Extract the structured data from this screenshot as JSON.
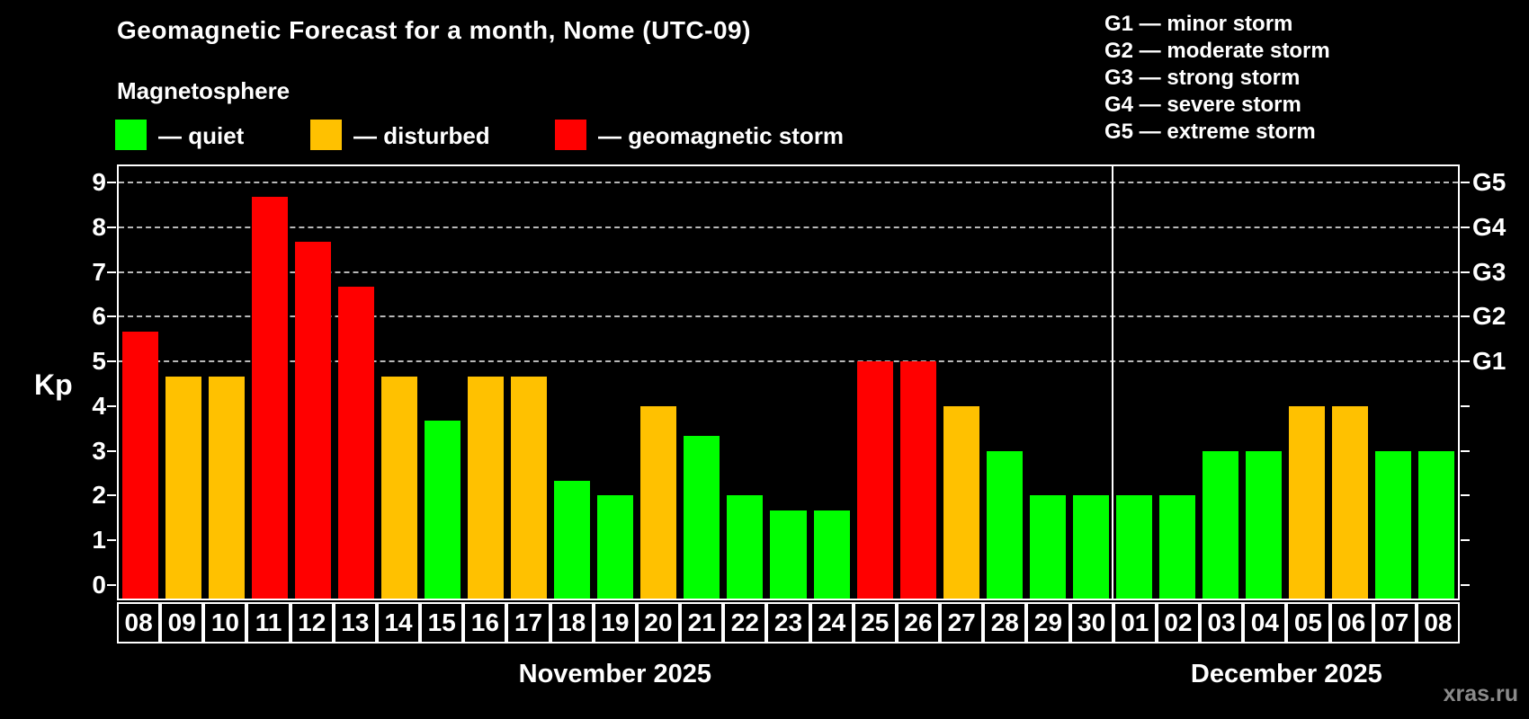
{
  "title": "Geomagnetic Forecast for a month, Nome (UTC-09)",
  "subtitle": "Magnetosphere",
  "colors": {
    "quiet": "#00ff00",
    "disturbed": "#ffc100",
    "storm": "#ff0000",
    "background": "#000000",
    "axis": "#ffffff",
    "gridline": "#b8b8b8",
    "watermark_text": "#8a8a8a"
  },
  "legend": {
    "items": [
      {
        "status": "quiet",
        "label": "— quiet"
      },
      {
        "status": "disturbed",
        "label": "— disturbed"
      },
      {
        "status": "storm",
        "label": "— geomagnetic storm"
      }
    ]
  },
  "g_legend": {
    "items": [
      {
        "text": "G1 — minor storm"
      },
      {
        "text": "G2 — moderate storm"
      },
      {
        "text": "G3 — strong storm"
      },
      {
        "text": "G4 — severe storm"
      },
      {
        "text": "G5 — extreme storm"
      }
    ]
  },
  "watermark": "xras.ru",
  "chart_data": {
    "type": "bar",
    "title": "Geomagnetic Forecast for a month, Nome (UTC-09)",
    "subtitle": "Magnetosphere",
    "ylabel": "Kp",
    "ylim": [
      -0.3,
      9.37
    ],
    "y_ticks": [
      0,
      1,
      2,
      3,
      4,
      5,
      6,
      7,
      8,
      9
    ],
    "gridlines_at": [
      5,
      6,
      7,
      8,
      9
    ],
    "grid": "dashed horizontal at storm levels only",
    "right_axis_labels": [
      {
        "kp": 5,
        "label": "G1"
      },
      {
        "kp": 6,
        "label": "G2"
      },
      {
        "kp": 7,
        "label": "G3"
      },
      {
        "kp": 8,
        "label": "G4"
      },
      {
        "kp": 9,
        "label": "G5"
      }
    ],
    "categories": [
      "08",
      "09",
      "10",
      "11",
      "12",
      "13",
      "14",
      "15",
      "16",
      "17",
      "18",
      "19",
      "20",
      "21",
      "22",
      "23",
      "24",
      "25",
      "26",
      "27",
      "28",
      "29",
      "30",
      "01",
      "02",
      "03",
      "04",
      "05",
      "06",
      "07",
      "08"
    ],
    "values": [
      5.67,
      4.67,
      4.67,
      8.67,
      7.67,
      6.67,
      4.67,
      3.67,
      4.67,
      4.67,
      2.33,
      2,
      4,
      3.33,
      2,
      1.67,
      1.67,
      5,
      5,
      4,
      3,
      2,
      2,
      2,
      2,
      3,
      3,
      4,
      4,
      3,
      3
    ],
    "statuses": [
      "storm",
      "disturbed",
      "disturbed",
      "storm",
      "storm",
      "storm",
      "disturbed",
      "quiet",
      "disturbed",
      "disturbed",
      "quiet",
      "quiet",
      "disturbed",
      "quiet",
      "quiet",
      "quiet",
      "quiet",
      "storm",
      "storm",
      "disturbed",
      "quiet",
      "quiet",
      "quiet",
      "quiet",
      "quiet",
      "quiet",
      "quiet",
      "disturbed",
      "disturbed",
      "quiet",
      "quiet"
    ],
    "months": [
      {
        "label": "November 2025",
        "start_index": 0,
        "days": 23
      },
      {
        "label": "December 2025",
        "start_index": 23,
        "days": 8
      }
    ],
    "separator_after_index": 22,
    "legend_position": "top-left above plot"
  }
}
